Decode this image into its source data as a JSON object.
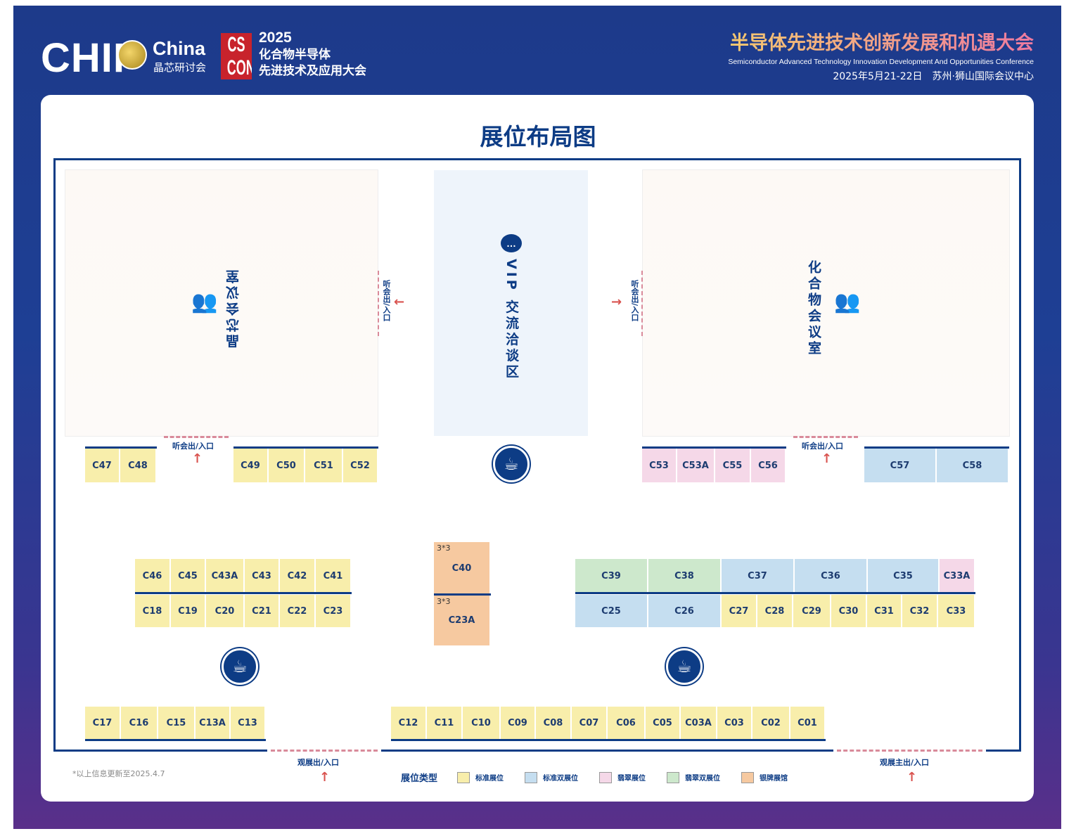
{
  "header": {
    "logo_chip": "CHIP",
    "logo_china": "China",
    "logo_china_cn": "晶芯研讨会",
    "cs_logo": "CS CHINA CON",
    "cs_year": "2025",
    "cs_line1": "化合物半导体",
    "cs_line2": "先进技术及应用大会",
    "conf_title": "半导体先进技术创新发展和机遇大会",
    "conf_title_en": "Semiconductor Advanced Technology Innovation Development And Opportunities Conference",
    "conf_date_place": "2025年5月21-22日　苏州·狮山国际会议中心"
  },
  "map": {
    "title": "展位布局图",
    "room_left": "晶芯会议室",
    "room_right": "化合物会议室",
    "vip": "VIP 交流洽谈区",
    "entry_meeting": "听会出/入口",
    "entry_exhibit": "观展出/入口",
    "entry_main": "观展主出/入口",
    "note": "*以上信息更新至2025.4.7",
    "size_label": "3*3",
    "icons": {
      "meeting": "meeting-room-icon",
      "coffee": "coffee-icon",
      "chat": "chat-icon",
      "arrow": "arrow-icon"
    }
  },
  "legend": {
    "title": "展位类型",
    "items": [
      {
        "type": "standard",
        "label": "标准展位",
        "color": "#f8eeab"
      },
      {
        "type": "standard-double",
        "label": "标准双展位",
        "color": "#c5def0"
      },
      {
        "type": "emerald",
        "label": "翡翠展位",
        "color": "#f5d8e8"
      },
      {
        "type": "emerald-double",
        "label": "翡翠双展位",
        "color": "#cde8cc"
      },
      {
        "type": "silver",
        "label": "银牌展馆",
        "color": "#f6c9a0"
      }
    ]
  },
  "booth_rows": [
    [
      {
        "id": "C47",
        "type": "standard"
      },
      {
        "id": "C48",
        "type": "standard"
      }
    ],
    [
      {
        "id": "C49",
        "type": "standard"
      },
      {
        "id": "C50",
        "type": "standard"
      },
      {
        "id": "C51",
        "type": "standard"
      },
      {
        "id": "C52",
        "type": "standard"
      }
    ],
    [
      {
        "id": "C53",
        "type": "emerald"
      },
      {
        "id": "C53A",
        "type": "emerald"
      },
      {
        "id": "C55",
        "type": "emerald"
      },
      {
        "id": "C56",
        "type": "emerald"
      }
    ],
    [
      {
        "id": "C57",
        "type": "standard-double"
      },
      {
        "id": "C58",
        "type": "standard-double"
      }
    ],
    [
      {
        "id": "C46",
        "type": "standard"
      },
      {
        "id": "C45",
        "type": "standard"
      },
      {
        "id": "C43A",
        "type": "standard"
      },
      {
        "id": "C43",
        "type": "standard"
      },
      {
        "id": "C42",
        "type": "standard"
      },
      {
        "id": "C41",
        "type": "standard"
      }
    ],
    [
      {
        "id": "C18",
        "type": "standard"
      },
      {
        "id": "C19",
        "type": "standard"
      },
      {
        "id": "C20",
        "type": "standard"
      },
      {
        "id": "C21",
        "type": "standard"
      },
      {
        "id": "C22",
        "type": "standard"
      },
      {
        "id": "C23",
        "type": "standard"
      }
    ],
    [
      {
        "id": "C39",
        "type": "emerald-double"
      },
      {
        "id": "C38",
        "type": "emerald-double"
      },
      {
        "id": "C37",
        "type": "standard-double"
      },
      {
        "id": "C36",
        "type": "standard-double"
      },
      {
        "id": "C35",
        "type": "standard-double"
      },
      {
        "id": "C33A",
        "type": "emerald"
      }
    ],
    [
      {
        "id": "C25",
        "type": "standard-double"
      },
      {
        "id": "C26",
        "type": "standard-double"
      },
      {
        "id": "C27",
        "type": "standard"
      },
      {
        "id": "C28",
        "type": "standard"
      },
      {
        "id": "C29",
        "type": "standard"
      },
      {
        "id": "C30",
        "type": "standard"
      },
      {
        "id": "C31",
        "type": "standard"
      },
      {
        "id": "C32",
        "type": "standard"
      },
      {
        "id": "C33",
        "type": "standard"
      }
    ],
    [
      {
        "id": "C40",
        "type": "silver",
        "size": "3*3"
      }
    ],
    [
      {
        "id": "C23A",
        "type": "silver",
        "size": "3*3"
      }
    ],
    [
      {
        "id": "C17",
        "type": "standard"
      },
      {
        "id": "C16",
        "type": "standard"
      },
      {
        "id": "C15",
        "type": "standard"
      },
      {
        "id": "C13A",
        "type": "standard"
      },
      {
        "id": "C13",
        "type": "standard"
      }
    ],
    [
      {
        "id": "C12",
        "type": "standard"
      },
      {
        "id": "C11",
        "type": "standard"
      },
      {
        "id": "C10",
        "type": "standard"
      },
      {
        "id": "C09",
        "type": "standard"
      },
      {
        "id": "C08",
        "type": "standard"
      },
      {
        "id": "C07",
        "type": "standard"
      },
      {
        "id": "C06",
        "type": "standard"
      },
      {
        "id": "C05",
        "type": "standard"
      },
      {
        "id": "C03A",
        "type": "standard"
      },
      {
        "id": "C03",
        "type": "standard"
      },
      {
        "id": "C02",
        "type": "standard"
      },
      {
        "id": "C01",
        "type": "standard"
      }
    ]
  ]
}
